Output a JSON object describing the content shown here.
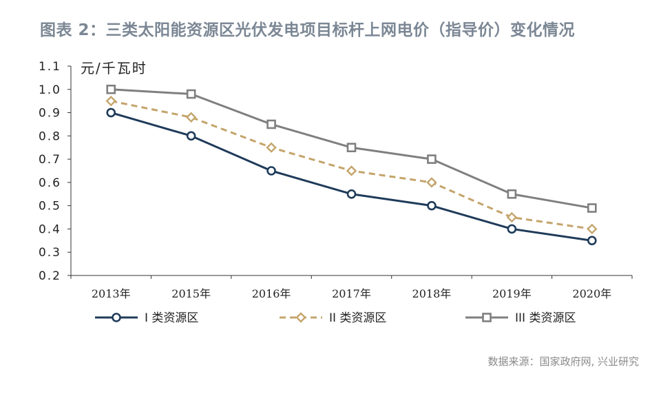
{
  "chart_data": {
    "type": "line",
    "title": "图表 2：三类太阳能资源区光伏发电项目标杆上网电价（指导价）变化情况",
    "ylabel": "元/千瓦时",
    "xlabel": "",
    "categories": [
      "2013年",
      "2015年",
      "2016年",
      "2017年",
      "2018年",
      "2019年",
      "2020年"
    ],
    "ylim": [
      0.2,
      1.1
    ],
    "yticks": [
      "0.2",
      "0.3",
      "0.4",
      "0.5",
      "0.6",
      "0.7",
      "0.8",
      "0.9",
      "1.0",
      "1.1"
    ],
    "grid": false,
    "legend": "bottom",
    "series": [
      {
        "name": "I 类资源区",
        "values": [
          0.9,
          0.8,
          0.65,
          0.55,
          0.5,
          0.4,
          0.35
        ],
        "color": "#1f3b5a",
        "dash": "solid",
        "marker": "circle"
      },
      {
        "name": "II 类资源区",
        "values": [
          0.95,
          0.88,
          0.75,
          0.65,
          0.6,
          0.45,
          0.4
        ],
        "color": "#c4a46a",
        "dash": "dashed",
        "marker": "diamond"
      },
      {
        "name": "III 类资源区",
        "values": [
          1.0,
          0.98,
          0.85,
          0.75,
          0.7,
          0.55,
          0.49
        ],
        "color": "#7f7f7f",
        "dash": "solid",
        "marker": "square"
      }
    ]
  },
  "source": "数据来源：国家政府网, 兴业研究"
}
